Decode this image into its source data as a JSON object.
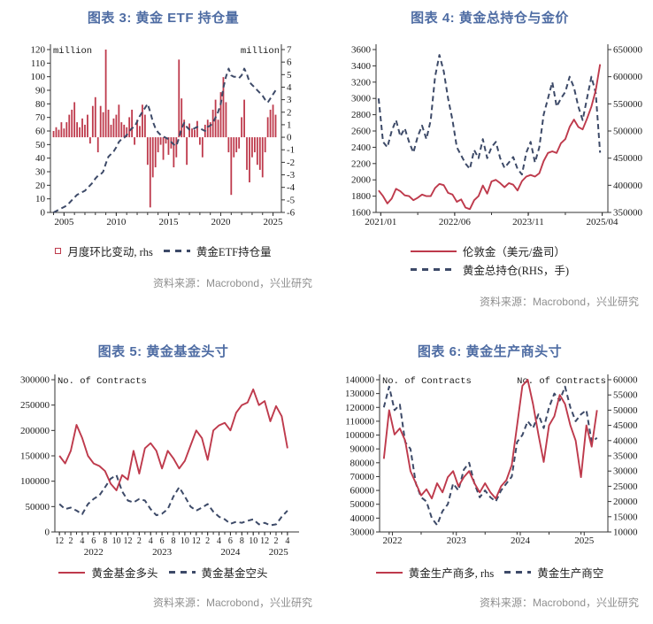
{
  "page": {
    "background": "#ffffff"
  },
  "colors": {
    "red": "#BE3A4C",
    "navy": "#3D4A68",
    "title_blue": "#4E6CA3",
    "source_gray": "#8F8F8F",
    "axis_text": "#1a1a1a",
    "spine": "#333333"
  },
  "chart_data": [
    {
      "id": "gold-etf-holdings",
      "type": "bar+line",
      "title": "图表 3: 黄金 ETF 持仓量",
      "source": "资料来源：Macrobond，兴业研究",
      "left_axis": {
        "min": 0,
        "max": 120,
        "step": 10,
        "label": "million"
      },
      "right_axis": {
        "min": -6,
        "max": 7,
        "step": 1,
        "label": "million"
      },
      "x_axis": {
        "min": 2003.7,
        "max": 2025.8
      },
      "x_ticks": [
        {
          "x": 2005,
          "label": "2005"
        },
        {
          "x": 2010,
          "label": "2010"
        },
        {
          "x": 2015,
          "label": "2015"
        },
        {
          "x": 2020,
          "label": "2020"
        },
        {
          "x": 2025,
          "label": "2025"
        }
      ],
      "x_minor": [
        2004,
        2025,
        1
      ],
      "series": [
        {
          "key": "monthly-change-bars",
          "name": "月度环比变动, rhs",
          "type": "bar",
          "axis": "right",
          "color": "red",
          "x_start": 2004.0,
          "x_step": 0.25,
          "values": [
            0.5,
            0.8,
            0.6,
            1.2,
            0.7,
            1.2,
            1.8,
            2.2,
            2.8,
            1.2,
            0.8,
            1.5,
            1.0,
            1.8,
            -0.5,
            2.5,
            3.2,
            -1.2,
            2.5,
            2.0,
            7.0,
            2.2,
            1.0,
            1.5,
            1.8,
            2.6,
            1.2,
            1.0,
            0.8,
            1.6,
            2.2,
            -0.6,
            1.4,
            0.9,
            2.6,
            1.8,
            -2.2,
            -5.6,
            -3.2,
            -2.4,
            -1.2,
            -0.6,
            -1.8,
            -0.5,
            -1.4,
            -0.9,
            -2.4,
            -1.6,
            6.2,
            3.1,
            1.4,
            -2.2,
            1.1,
            0.7,
            0.6,
            1.3,
            -0.6,
            -1.6,
            1.0,
            1.4,
            1.2,
            2.2,
            3.0,
            1.4,
            3.6,
            4.8,
            2.8,
            -1.2,
            -4.6,
            -1.6,
            -1.2,
            -0.9,
            1.6,
            3.0,
            -2.6,
            -3.6,
            -1.6,
            -1.2,
            -2.2,
            -2.6,
            -3.2,
            -1.2,
            1.6,
            2.2,
            2.6,
            1.8
          ]
        },
        {
          "key": "etf-holdings-line",
          "name": "黄金ETF持仓量",
          "type": "line",
          "dashed": true,
          "axis": "left",
          "color": "navy",
          "x_start": 2004.0,
          "x_step": 0.25,
          "values": [
            0,
            1,
            2,
            3,
            4,
            5,
            7,
            9,
            11,
            13,
            14,
            15,
            16,
            18,
            20,
            22,
            25,
            27,
            28,
            30,
            36,
            41,
            43,
            45,
            48,
            52,
            54,
            55,
            57,
            60,
            62,
            63,
            67,
            71,
            74,
            77,
            80,
            74,
            67,
            62,
            59,
            57,
            56,
            55,
            54,
            52,
            50,
            49,
            55,
            62,
            66,
            63,
            61,
            61,
            62,
            63,
            62,
            61,
            60,
            63,
            64,
            66,
            70,
            74,
            80,
            92,
            100,
            106,
            101,
            100,
            100,
            99,
            101,
            106,
            102,
            96,
            94,
            92,
            90,
            88,
            86,
            83,
            81,
            84,
            87,
            90
          ]
        }
      ],
      "legend": [
        {
          "marker": "square",
          "label": "月度环比变动, rhs"
        },
        {
          "marker": "dash",
          "label": "黄金ETF持仓量"
        }
      ]
    },
    {
      "id": "gold-total-positions-price",
      "type": "line",
      "title": "图表 4: 黄金总持仓与金价",
      "source": "资料来源：Macrobond，兴业研究",
      "left_axis": {
        "min": 1600,
        "max": 3600,
        "step": 200
      },
      "right_axis": {
        "min": 350000,
        "max": 650000,
        "step": 50000
      },
      "x_axis": {
        "min": 2020.95,
        "max": 2025.4
      },
      "x_ticks": [
        {
          "x": 2021.04,
          "label": "2021/01"
        },
        {
          "x": 2022.46,
          "label": "2022/06"
        },
        {
          "x": 2023.87,
          "label": "2023/11"
        },
        {
          "x": 2025.29,
          "label": "2025/04"
        }
      ],
      "x_minor": [
        2021.042,
        2025.3,
        0.70833
      ],
      "series": [
        {
          "key": "total-holdings-line",
          "name": "黄金总持仓(RHS，手)",
          "type": "line",
          "dashed": true,
          "axis": "right",
          "color": "navy",
          "x_start": 2021.0,
          "x_step": 0.0833333,
          "values": [
            560000,
            480000,
            470000,
            500000,
            520000,
            490000,
            505000,
            480000,
            460000,
            490000,
            510000,
            485000,
            520000,
            600000,
            640000,
            610000,
            560000,
            520000,
            470000,
            455000,
            440000,
            430000,
            465000,
            450000,
            485000,
            450000,
            470000,
            480000,
            450000,
            432000,
            442000,
            452000,
            430000,
            420000,
            460000,
            480000,
            442000,
            470000,
            530000,
            560000,
            590000,
            545000,
            560000,
            572000,
            600000,
            580000,
            545000,
            520000,
            560000,
            600000,
            570000,
            460000
          ]
        },
        {
          "key": "london-gold-line",
          "name": "伦敦金（美元/盎司）",
          "type": "line",
          "dashed": false,
          "axis": "left",
          "color": "red",
          "x_start": 2021.0,
          "x_step": 0.0833333,
          "values": [
            1870,
            1800,
            1710,
            1770,
            1890,
            1860,
            1810,
            1800,
            1750,
            1780,
            1820,
            1800,
            1800,
            1900,
            1950,
            1935,
            1840,
            1820,
            1730,
            1760,
            1660,
            1640,
            1750,
            1800,
            1930,
            1830,
            1980,
            2000,
            1960,
            1910,
            1960,
            1940,
            1870,
            1985,
            2040,
            2060,
            2040,
            2080,
            2230,
            2330,
            2350,
            2330,
            2450,
            2500,
            2650,
            2740,
            2650,
            2620,
            2750,
            2900,
            3100,
            3420
          ]
        }
      ],
      "legend": [
        {
          "marker": "line",
          "label": "伦敦金（美元/盎司）"
        },
        {
          "marker": "dash",
          "label": "黄金总持仓(RHS，手)"
        }
      ]
    },
    {
      "id": "gold-fund-positions",
      "type": "line",
      "title": "图表 5: 黄金基金头寸",
      "source": "资料来源：Macrobond，兴业研究",
      "left_axis": {
        "min": 0,
        "max": 300000,
        "step": 50000,
        "label": "No. of Contracts"
      },
      "x_axis": {
        "min": 2021.85,
        "max": 2025.42
      },
      "x_ticks": {
        "start": 2021.9167,
        "step": 0.1666667,
        "labels": [
          "12",
          "2",
          "4",
          "6",
          "8",
          "10",
          "12",
          "2",
          "4",
          "6",
          "8",
          "10",
          "12",
          "2",
          "4",
          "6",
          "8",
          "10",
          "12",
          "2",
          "4"
        ]
      },
      "x_ticks2": [
        {
          "x": 2022.4167,
          "label": "2022"
        },
        {
          "x": 2023.4167,
          "label": "2023"
        },
        {
          "x": 2024.4167,
          "label": "2024"
        },
        {
          "x": 2025.12,
          "label": "2025"
        }
      ],
      "x_minor": [
        2021.9167,
        2025.33,
        0.0833333
      ],
      "series": [
        {
          "key": "fund-shorts-line",
          "name": "黄金基金空头",
          "type": "line",
          "dashed": true,
          "axis": "left",
          "color": "navy",
          "x_start": 2021.9167,
          "x_step": 0.0833333,
          "values": [
            55000,
            45000,
            48000,
            42000,
            35000,
            55000,
            65000,
            72000,
            88000,
            105000,
            112000,
            80000,
            62000,
            58000,
            65000,
            62000,
            45000,
            33000,
            36000,
            45000,
            70000,
            88000,
            70000,
            50000,
            42000,
            48000,
            55000,
            40000,
            30000,
            25000,
            16000,
            20000,
            18000,
            22000,
            25000,
            15000,
            18000,
            13000,
            15000,
            30000,
            42000
          ]
        },
        {
          "key": "fund-longs-line",
          "name": "黄金基金多头",
          "type": "line",
          "dashed": false,
          "axis": "left",
          "color": "red",
          "x_start": 2021.9167,
          "x_step": 0.0833333,
          "values": [
            150000,
            135000,
            160000,
            211000,
            185000,
            150000,
            135000,
            130000,
            120000,
            95000,
            82000,
            112000,
            103000,
            160000,
            115000,
            165000,
            175000,
            160000,
            125000,
            160000,
            145000,
            125000,
            140000,
            170000,
            200000,
            185000,
            142000,
            200000,
            210000,
            215000,
            200000,
            235000,
            250000,
            255000,
            281000,
            250000,
            258000,
            218000,
            248000,
            228000,
            165000
          ]
        }
      ],
      "legend": [
        {
          "marker": "line",
          "label": "黄金基金多头"
        },
        {
          "marker": "dash",
          "label": "黄金基金空头"
        }
      ]
    },
    {
      "id": "gold-producer-positions",
      "type": "line",
      "title": "图表 6: 黄金生产商头寸",
      "source": "资料来源：Macrobond，兴业研究",
      "left_axis": {
        "min": 30000,
        "max": 140000,
        "step": 10000,
        "label": "No. of Contracts"
      },
      "right_axis": {
        "min": 10000,
        "max": 60000,
        "step": 5000,
        "label": "No. of Contracts"
      },
      "x_axis": {
        "min": 2021.85,
        "max": 2025.42
      },
      "x_ticks": [
        {
          "x": 2022.05,
          "label": "2022"
        },
        {
          "x": 2023.05,
          "label": "2023"
        },
        {
          "x": 2024.05,
          "label": "2024"
        },
        {
          "x": 2025.05,
          "label": "2025"
        }
      ],
      "x_minor": [
        2022.0,
        2025.4,
        0.5
      ],
      "series": [
        {
          "key": "producer-short-line",
          "name": "黄金生产商空",
          "type": "line",
          "dashed": true,
          "axis": "left",
          "color": "navy",
          "x_start": 2021.9167,
          "x_step": 0.0833333,
          "values": [
            120000,
            135000,
            118000,
            122000,
            95000,
            90000,
            65000,
            55000,
            52000,
            40000,
            35000,
            45000,
            50000,
            65000,
            60000,
            75000,
            80000,
            65000,
            55000,
            60000,
            55000,
            52000,
            60000,
            65000,
            70000,
            95000,
            100000,
            110000,
            105000,
            115000,
            105000,
            120000,
            130000,
            125000,
            135000,
            120000,
            110000,
            115000,
            118000,
            95000,
            98000
          ]
        },
        {
          "key": "producer-long-line",
          "name": "黄金生产商多, rhs",
          "type": "line",
          "dashed": false,
          "axis": "right",
          "color": "red",
          "x_start": 2021.9167,
          "x_step": 0.0833333,
          "values": [
            34000,
            50000,
            42000,
            44000,
            40000,
            30000,
            26000,
            22000,
            24000,
            21000,
            26000,
            23000,
            28000,
            30000,
            25000,
            28000,
            30000,
            26000,
            23000,
            26000,
            23000,
            21000,
            25000,
            27000,
            32000,
            45000,
            58000,
            60000,
            52000,
            42000,
            33000,
            45000,
            48000,
            55000,
            52000,
            45000,
            40000,
            28000,
            45000,
            38000,
            50000
          ]
        }
      ],
      "legend": [
        {
          "marker": "line",
          "label": "黄金生产商多, rhs"
        },
        {
          "marker": "dash",
          "label": "黄金生产商空"
        }
      ]
    }
  ]
}
